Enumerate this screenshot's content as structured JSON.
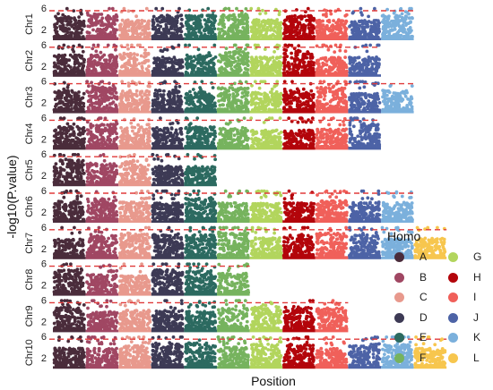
{
  "chart_data": {
    "type": "scatter",
    "subtype": "manhattan",
    "ylabel": "-log10(P.value)",
    "xlabel": "Position",
    "y_ticks": [
      2,
      6
    ],
    "ylim": [
      0,
      6
    ],
    "threshold": 5.5,
    "threshold_style": "dashed red line",
    "legend": {
      "title": "Homo",
      "position": "right",
      "entries": [
        {
          "label": "A",
          "color": "#4a2c3b"
        },
        {
          "label": "B",
          "color": "#a04763"
        },
        {
          "label": "C",
          "color": "#e8998d"
        },
        {
          "label": "D",
          "color": "#3d3a55"
        },
        {
          "label": "E",
          "color": "#2c6a60"
        },
        {
          "label": "F",
          "color": "#76b35e"
        },
        {
          "label": "G",
          "color": "#b2d55d"
        },
        {
          "label": "H",
          "color": "#b3050b"
        },
        {
          "label": "I",
          "color": "#f0605a"
        },
        {
          "label": "J",
          "color": "#4d63a6"
        },
        {
          "label": "K",
          "color": "#7bb0dc"
        },
        {
          "label": "L",
          "color": "#f7c64e"
        }
      ]
    },
    "panels": [
      {
        "label": "Chr1",
        "segments": [
          "A",
          "B",
          "C",
          "D",
          "E",
          "F",
          "G",
          "H",
          "I",
          "J",
          "K"
        ]
      },
      {
        "label": "Chr2",
        "segments": [
          "A",
          "B",
          "C",
          "D",
          "E",
          "F",
          "G",
          "H",
          "I",
          "J"
        ]
      },
      {
        "label": "Chr3",
        "segments": [
          "A",
          "B",
          "C",
          "D",
          "E",
          "F",
          "G",
          "H",
          "I",
          "J",
          "K"
        ]
      },
      {
        "label": "Chr4",
        "segments": [
          "A",
          "B",
          "C",
          "D",
          "E",
          "F",
          "G",
          "H",
          "I",
          "J"
        ]
      },
      {
        "label": "Chr5",
        "segments": [
          "A",
          "B",
          "C",
          "D",
          "E"
        ]
      },
      {
        "label": "Chr6",
        "segments": [
          "A",
          "B",
          "C",
          "D",
          "E",
          "F",
          "G",
          "H",
          "I",
          "J",
          "K"
        ]
      },
      {
        "label": "Chr7",
        "segments": [
          "A",
          "B",
          "C",
          "D",
          "E",
          "F",
          "G",
          "H",
          "I",
          "J",
          "K",
          "L"
        ]
      },
      {
        "label": "Chr8",
        "segments": [
          "A",
          "B",
          "C",
          "D",
          "E",
          "F"
        ]
      },
      {
        "label": "Chr9",
        "segments": [
          "A",
          "B",
          "C",
          "D",
          "E",
          "F",
          "G",
          "H",
          "I"
        ]
      },
      {
        "label": "Chr10",
        "segments": [
          "A",
          "B",
          "C",
          "D",
          "E",
          "F",
          "G",
          "H",
          "I",
          "J",
          "K",
          "L"
        ]
      }
    ]
  }
}
